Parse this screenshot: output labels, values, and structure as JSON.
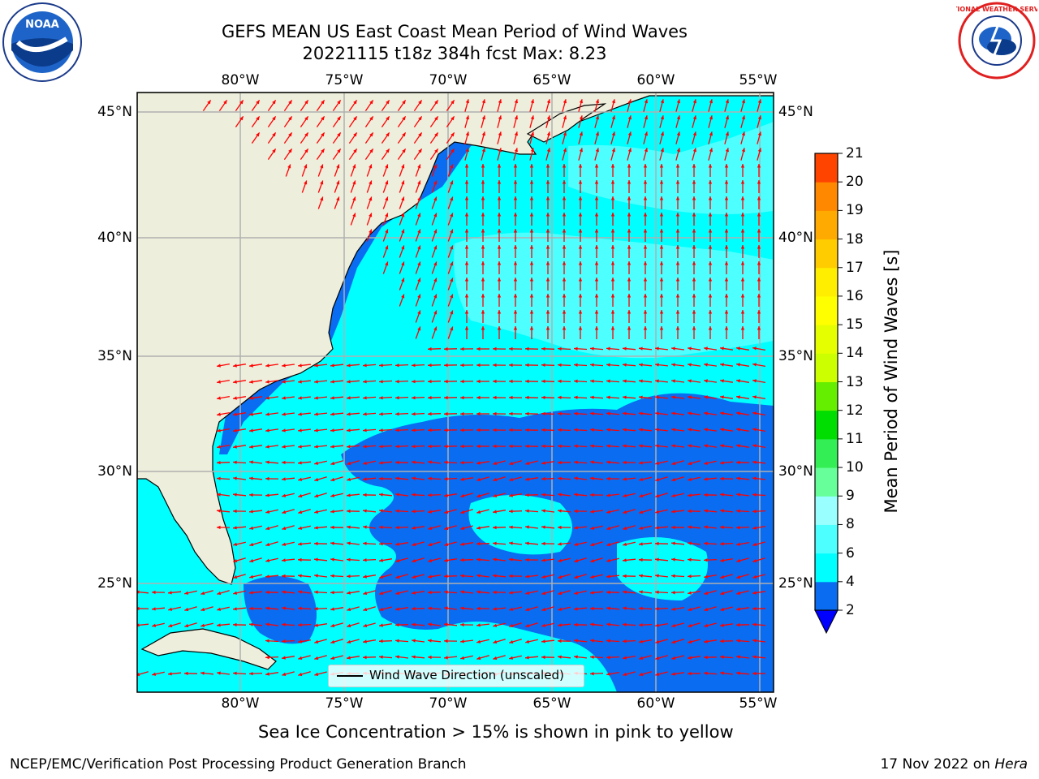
{
  "title": {
    "line1": "GEFS MEAN US East Coast Mean Period of Wind Waves",
    "line2": "20221115 t18z 384h fcst   Max: 8.23"
  },
  "axes": {
    "lon_labels": [
      "80°W",
      "75°W",
      "70°W",
      "65°W",
      "60°W",
      "55°W"
    ],
    "lat_labels": [
      "45°N",
      "40°N",
      "35°N",
      "30°N",
      "25°N"
    ],
    "lon_range": [
      -85,
      -54.4
    ],
    "lat_range": [
      20.5,
      45.8
    ]
  },
  "colorbar": {
    "title": "Mean Period of Wind Waves [s]",
    "levels": [
      "2",
      "4",
      "6",
      "8",
      "9",
      "10",
      "11",
      "12",
      "13",
      "14",
      "15",
      "16",
      "17",
      "18",
      "19",
      "20",
      "21"
    ],
    "colors": [
      "#0a6cf0",
      "#00ffff",
      "#4dffff",
      "#99ffff",
      "#66ff99",
      "#33ee55",
      "#00dd00",
      "#66ee00",
      "#ccff00",
      "#e6ff00",
      "#ffff00",
      "#ffee00",
      "#ffcc00",
      "#ffaa00",
      "#ff8800",
      "#ff4400",
      "#ff0000"
    ],
    "under_color": "#0000ff"
  },
  "legend": {
    "label": "Wind Wave Direction (unscaled)"
  },
  "subnote": "Sea Ice Concentration > 15% is shown in pink to yellow",
  "footer": {
    "left": "NCEP/EMC/Verification Post Processing Product Generation Branch",
    "right_prefix": "17 Nov 2022 on",
    "right_machine": "Hera"
  },
  "logos": {
    "left_text": "NOAA",
    "right_text": "NATIONAL WEATHER SERVICE"
  },
  "colors": {
    "land": "#eeeedc",
    "ocean": "#00ffff",
    "light_ocean": "#4dffff",
    "low_period": "#0a6cf0",
    "arrow": "#ff0000",
    "grid": "#b0b0b0"
  }
}
